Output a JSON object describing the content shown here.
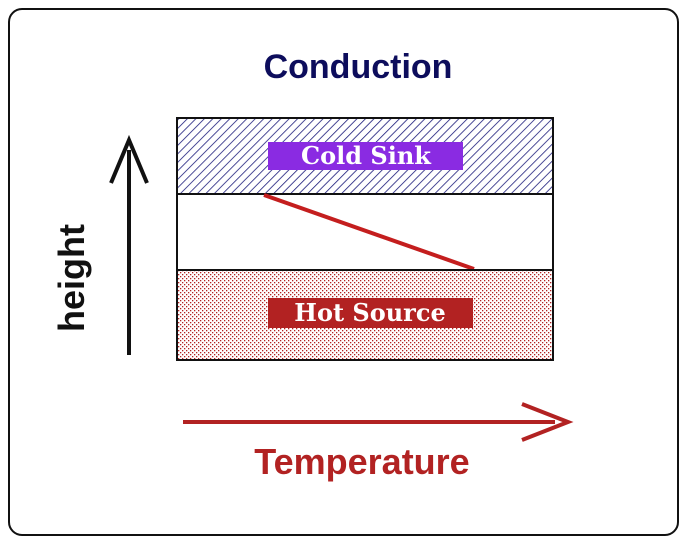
{
  "title": "Conduction",
  "cold_layer": {
    "label": "Cold Sink",
    "color": "#1a1a7a",
    "label_bg": "#8a2be2"
  },
  "hot_layer": {
    "label": "Hot Source",
    "color": "#b22222",
    "label_bg": "#b22222"
  },
  "axes": {
    "vertical_label": "height",
    "horizontal_label": "Temperature",
    "horizontal_color": "#b22222"
  },
  "colors": {
    "title": "#0d0d5c",
    "profile_line": "#c41e1e",
    "outline": "#111111"
  }
}
